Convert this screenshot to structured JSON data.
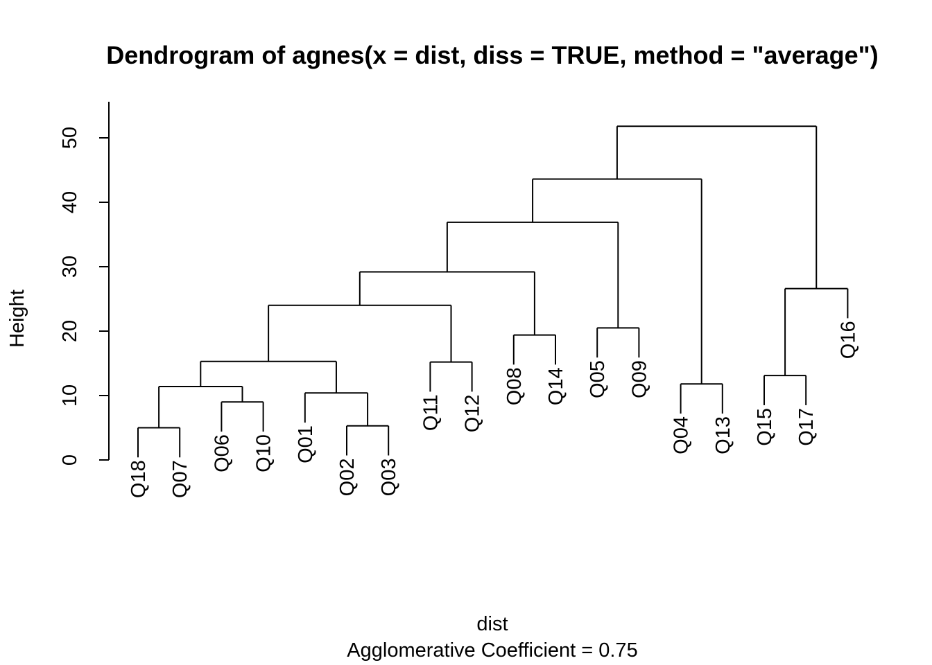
{
  "chart_data": {
    "type": "dendrogram",
    "title": "Dendrogram of  agnes(x = dist, diss = TRUE, method = \"average\")",
    "xlabel": "dist",
    "subtitle": "Agglomerative Coefficient =  0.75",
    "ylabel": "Height",
    "ylim": [
      0,
      52
    ],
    "yticks": [
      0,
      10,
      20,
      30,
      40,
      50
    ],
    "grid": false,
    "leaf_order": [
      "Q18",
      "Q07",
      "Q06",
      "Q10",
      "Q01",
      "Q02",
      "Q03",
      "Q11",
      "Q12",
      "Q08",
      "Q14",
      "Q05",
      "Q09",
      "Q04",
      "Q13",
      "Q15",
      "Q17",
      "Q16"
    ],
    "merges": [
      {
        "left": "Q18",
        "right": "Q07",
        "height": 5.0
      },
      {
        "left": "Q02",
        "right": "Q03",
        "height": 5.3
      },
      {
        "left": "Q06",
        "right": "Q10",
        "height": 9.0
      },
      {
        "left": "Q01",
        "right": "Q02+Q03",
        "height": 10.4
      },
      {
        "left": "Q18+Q07",
        "right": "Q06+Q10",
        "height": 11.4
      },
      {
        "left": "Q04",
        "right": "Q13",
        "height": 11.8
      },
      {
        "left": "Q15",
        "right": "Q17",
        "height": 13.1
      },
      {
        "left": "Q11",
        "right": "Q12",
        "height": 15.2
      },
      {
        "left": "Q18..Q10",
        "right": "Q01..Q03",
        "height": 15.3
      },
      {
        "left": "Q08",
        "right": "Q14",
        "height": 19.4
      },
      {
        "left": "Q05",
        "right": "Q09",
        "height": 20.5
      },
      {
        "left": "Q18..Q03",
        "right": "Q11+Q12",
        "height": 24.0
      },
      {
        "left": "Q15+Q17",
        "right": "Q16",
        "height": 26.6
      },
      {
        "left": "Q18..Q12",
        "right": "Q08+Q14",
        "height": 29.2
      },
      {
        "left": "Q18..Q14",
        "right": "Q05+Q09",
        "height": 36.9
      },
      {
        "left": "Q18..Q09",
        "right": "Q04+Q13",
        "height": 43.6
      },
      {
        "left": "Q18..Q13",
        "right": "Q15..Q16",
        "height": 51.8
      }
    ]
  }
}
